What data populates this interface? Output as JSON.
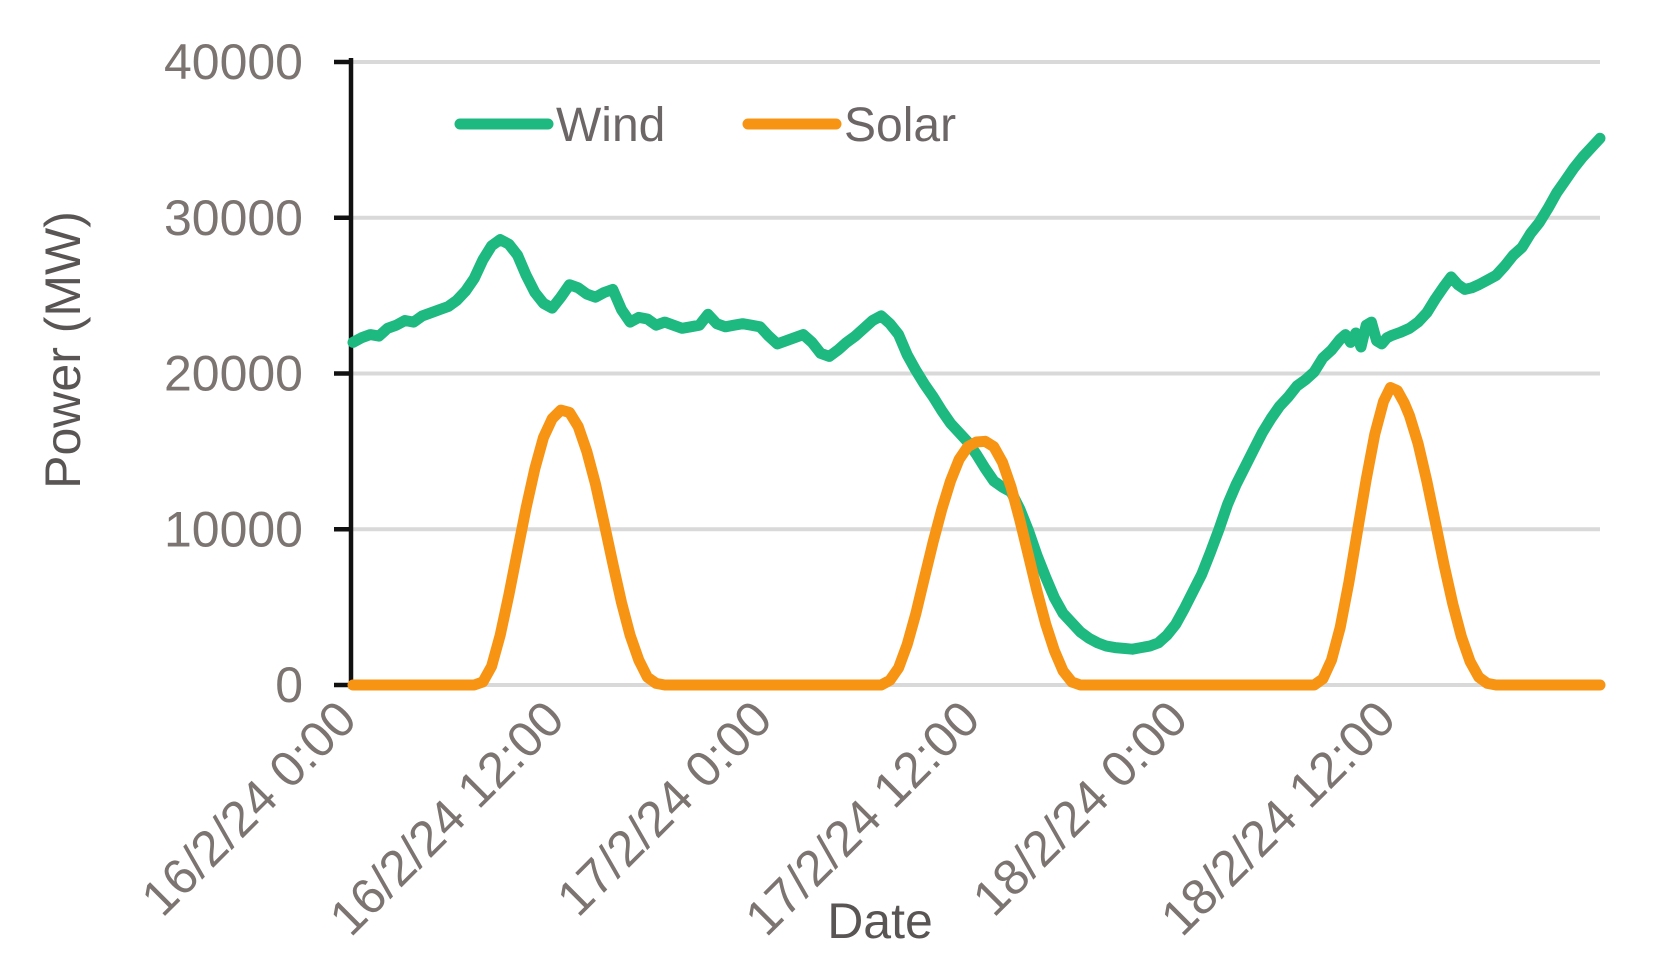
{
  "chart_data": {
    "type": "line",
    "title": "",
    "xlabel": "Date",
    "ylabel": "Power (MW)",
    "xlim_hours": [
      0,
      72
    ],
    "ylim": [
      0,
      40000
    ],
    "grid": "horizontal",
    "legend_position": "top-inside",
    "y_ticks": [
      40000,
      30000,
      20000,
      10000,
      0
    ],
    "x_ticks": [
      {
        "hour": 0,
        "label": "16/2/24 0:00"
      },
      {
        "hour": 12,
        "label": "16/2/24 12:00"
      },
      {
        "hour": 24,
        "label": "17/2/24 0:00"
      },
      {
        "hour": 36,
        "label": "17/2/24 12:00"
      },
      {
        "hour": 48,
        "label": "18/2/24 0:00"
      },
      {
        "hour": 60,
        "label": "18/2/24 12:00"
      }
    ],
    "series": [
      {
        "name": "Wind",
        "color": "#1db980",
        "points": [
          [
            0,
            22000
          ],
          [
            0.5,
            22300
          ],
          [
            1,
            22500
          ],
          [
            1.5,
            22400
          ],
          [
            2,
            22900
          ],
          [
            2.5,
            23100
          ],
          [
            3,
            23400
          ],
          [
            3.5,
            23300
          ],
          [
            4,
            23700
          ],
          [
            4.5,
            23900
          ],
          [
            5,
            24100
          ],
          [
            5.5,
            24300
          ],
          [
            6,
            24700
          ],
          [
            6.5,
            25300
          ],
          [
            7,
            26100
          ],
          [
            7.5,
            27300
          ],
          [
            8,
            28200
          ],
          [
            8.5,
            28600
          ],
          [
            9,
            28300
          ],
          [
            9.5,
            27600
          ],
          [
            10,
            26300
          ],
          [
            10.5,
            25200
          ],
          [
            11,
            24500
          ],
          [
            11.5,
            24200
          ],
          [
            12,
            24900
          ],
          [
            12.5,
            25700
          ],
          [
            13,
            25500
          ],
          [
            13.5,
            25100
          ],
          [
            14,
            24900
          ],
          [
            14.5,
            25200
          ],
          [
            15,
            25400
          ],
          [
            15.5,
            24100
          ],
          [
            16,
            23300
          ],
          [
            16.5,
            23600
          ],
          [
            17,
            23500
          ],
          [
            17.5,
            23100
          ],
          [
            18,
            23300
          ],
          [
            18.5,
            23100
          ],
          [
            19,
            22900
          ],
          [
            19.5,
            23000
          ],
          [
            20,
            23100
          ],
          [
            20.5,
            23800
          ],
          [
            21,
            23200
          ],
          [
            21.5,
            23000
          ],
          [
            22,
            23100
          ],
          [
            22.5,
            23200
          ],
          [
            23,
            23100
          ],
          [
            23.5,
            23000
          ],
          [
            24,
            22400
          ],
          [
            24.5,
            21900
          ],
          [
            25,
            22100
          ],
          [
            25.5,
            22300
          ],
          [
            26,
            22500
          ],
          [
            26.5,
            22000
          ],
          [
            27,
            21300
          ],
          [
            27.5,
            21100
          ],
          [
            28,
            21500
          ],
          [
            28.5,
            22000
          ],
          [
            29,
            22400
          ],
          [
            29.5,
            22900
          ],
          [
            30,
            23400
          ],
          [
            30.5,
            23700
          ],
          [
            31,
            23200
          ],
          [
            31.5,
            22500
          ],
          [
            32,
            21200
          ],
          [
            32.5,
            20200
          ],
          [
            33,
            19300
          ],
          [
            33.5,
            18500
          ],
          [
            34,
            17600
          ],
          [
            34.5,
            16800
          ],
          [
            35,
            16200
          ],
          [
            35.5,
            15600
          ],
          [
            36,
            14800
          ],
          [
            36.5,
            13900
          ],
          [
            37,
            13100
          ],
          [
            37.5,
            12700
          ],
          [
            38,
            12400
          ],
          [
            38.5,
            11300
          ],
          [
            39,
            9900
          ],
          [
            39.5,
            8300
          ],
          [
            40,
            6900
          ],
          [
            40.5,
            5600
          ],
          [
            41,
            4600
          ],
          [
            41.5,
            4000
          ],
          [
            42,
            3400
          ],
          [
            42.5,
            3000
          ],
          [
            43,
            2700
          ],
          [
            43.5,
            2500
          ],
          [
            44,
            2400
          ],
          [
            44.5,
            2350
          ],
          [
            45,
            2300
          ],
          [
            45.5,
            2400
          ],
          [
            46,
            2500
          ],
          [
            46.5,
            2700
          ],
          [
            47,
            3200
          ],
          [
            47.5,
            3900
          ],
          [
            48,
            4900
          ],
          [
            48.5,
            6000
          ],
          [
            49,
            7100
          ],
          [
            49.5,
            8500
          ],
          [
            50,
            10000
          ],
          [
            50.5,
            11600
          ],
          [
            51,
            12900
          ],
          [
            51.5,
            14000
          ],
          [
            52,
            15100
          ],
          [
            52.5,
            16200
          ],
          [
            53,
            17100
          ],
          [
            53.5,
            17900
          ],
          [
            54,
            18500
          ],
          [
            54.5,
            19200
          ],
          [
            55,
            19600
          ],
          [
            55.5,
            20100
          ],
          [
            56,
            21000
          ],
          [
            56.5,
            21500
          ],
          [
            57,
            22200
          ],
          [
            57.3,
            22500
          ],
          [
            57.6,
            22000
          ],
          [
            57.9,
            22600
          ],
          [
            58.2,
            21700
          ],
          [
            58.5,
            23100
          ],
          [
            58.8,
            23300
          ],
          [
            59.1,
            22100
          ],
          [
            59.4,
            21900
          ],
          [
            59.7,
            22300
          ],
          [
            60,
            22450
          ],
          [
            60.5,
            22650
          ],
          [
            61,
            22900
          ],
          [
            61.5,
            23300
          ],
          [
            62,
            23900
          ],
          [
            62.5,
            24800
          ],
          [
            63,
            25600
          ],
          [
            63.4,
            26200
          ],
          [
            63.8,
            25700
          ],
          [
            64.2,
            25400
          ],
          [
            64.6,
            25500
          ],
          [
            65,
            25700
          ],
          [
            65.5,
            26000
          ],
          [
            66,
            26300
          ],
          [
            66.5,
            26900
          ],
          [
            67,
            27600
          ],
          [
            67.5,
            28100
          ],
          [
            68,
            29000
          ],
          [
            68.5,
            29700
          ],
          [
            69,
            30600
          ],
          [
            69.5,
            31600
          ],
          [
            70,
            32400
          ],
          [
            70.5,
            33200
          ],
          [
            71,
            33900
          ],
          [
            71.5,
            34500
          ],
          [
            72,
            35100
          ]
        ]
      },
      {
        "name": "Solar",
        "color": "#f89414",
        "points": [
          [
            0,
            0
          ],
          [
            7,
            0
          ],
          [
            7.5,
            200
          ],
          [
            8,
            1200
          ],
          [
            8.5,
            3200
          ],
          [
            9,
            5800
          ],
          [
            9.5,
            8600
          ],
          [
            10,
            11400
          ],
          [
            10.5,
            13900
          ],
          [
            11,
            15900
          ],
          [
            11.5,
            17100
          ],
          [
            12,
            17650
          ],
          [
            12.5,
            17500
          ],
          [
            13,
            16600
          ],
          [
            13.5,
            15000
          ],
          [
            14,
            12900
          ],
          [
            14.5,
            10400
          ],
          [
            15,
            7800
          ],
          [
            15.5,
            5300
          ],
          [
            16,
            3200
          ],
          [
            16.5,
            1600
          ],
          [
            17,
            500
          ],
          [
            17.5,
            100
          ],
          [
            18,
            0
          ],
          [
            30.5,
            0
          ],
          [
            31,
            300
          ],
          [
            31.5,
            1100
          ],
          [
            32,
            2600
          ],
          [
            32.5,
            4600
          ],
          [
            33,
            6900
          ],
          [
            33.5,
            9200
          ],
          [
            34,
            11300
          ],
          [
            34.5,
            13100
          ],
          [
            35,
            14500
          ],
          [
            35.5,
            15300
          ],
          [
            36,
            15600
          ],
          [
            36.5,
            15650
          ],
          [
            37,
            15300
          ],
          [
            37.5,
            14300
          ],
          [
            38,
            12700
          ],
          [
            38.5,
            10600
          ],
          [
            39,
            8300
          ],
          [
            39.5,
            6000
          ],
          [
            40,
            3900
          ],
          [
            40.5,
            2200
          ],
          [
            41,
            900
          ],
          [
            41.5,
            200
          ],
          [
            42,
            0
          ],
          [
            55.5,
            0
          ],
          [
            56,
            400
          ],
          [
            56.5,
            1600
          ],
          [
            57,
            3700
          ],
          [
            57.5,
            6600
          ],
          [
            58,
            9900
          ],
          [
            58.5,
            13200
          ],
          [
            59,
            16100
          ],
          [
            59.5,
            18200
          ],
          [
            59.9,
            19100
          ],
          [
            60.3,
            18900
          ],
          [
            60.7,
            18100
          ],
          [
            61,
            17300
          ],
          [
            61.5,
            15500
          ],
          [
            62,
            13100
          ],
          [
            62.5,
            10400
          ],
          [
            63,
            7700
          ],
          [
            63.5,
            5200
          ],
          [
            64,
            3100
          ],
          [
            64.5,
            1500
          ],
          [
            65,
            500
          ],
          [
            65.5,
            100
          ],
          [
            66,
            0
          ],
          [
            72,
            0
          ]
        ]
      }
    ]
  },
  "colors": {
    "background": "#ffffff",
    "grid": "#d9d9d9",
    "axis": "#111111",
    "tick_label": "#7b7470",
    "axis_title": "#5a5555",
    "legend_text": "#6c6667",
    "wind": "#1db980",
    "solar": "#f89414"
  }
}
